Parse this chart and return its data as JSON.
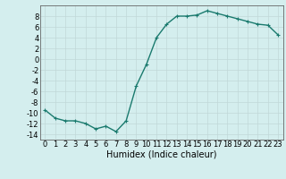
{
  "x": [
    0,
    1,
    2,
    3,
    4,
    5,
    6,
    7,
    8,
    9,
    10,
    11,
    12,
    13,
    14,
    15,
    16,
    17,
    18,
    19,
    20,
    21,
    22,
    23
  ],
  "y": [
    -9.5,
    -11.0,
    -11.5,
    -11.5,
    -12.0,
    -13.0,
    -12.5,
    -13.5,
    -11.5,
    -5.0,
    -1.0,
    4.0,
    6.5,
    8.0,
    8.0,
    8.2,
    9.0,
    8.5,
    8.0,
    7.5,
    7.0,
    6.5,
    6.3,
    4.5
  ],
  "line_color": "#1a7a6e",
  "marker": "+",
  "marker_size": 3,
  "line_width": 1.0,
  "bg_color": "#d4eeee",
  "grid_color": "#c0d8d8",
  "xlabel": "Humidex (Indice chaleur)",
  "xlabel_fontsize": 7,
  "tick_fontsize": 6,
  "ylim": [
    -15,
    10
  ],
  "xlim": [
    -0.5,
    23.5
  ],
  "yticks": [
    -14,
    -12,
    -10,
    -8,
    -6,
    -4,
    -2,
    0,
    2,
    4,
    6,
    8
  ],
  "xticks": [
    0,
    1,
    2,
    3,
    4,
    5,
    6,
    7,
    8,
    9,
    10,
    11,
    12,
    13,
    14,
    15,
    16,
    17,
    18,
    19,
    20,
    21,
    22,
    23
  ]
}
